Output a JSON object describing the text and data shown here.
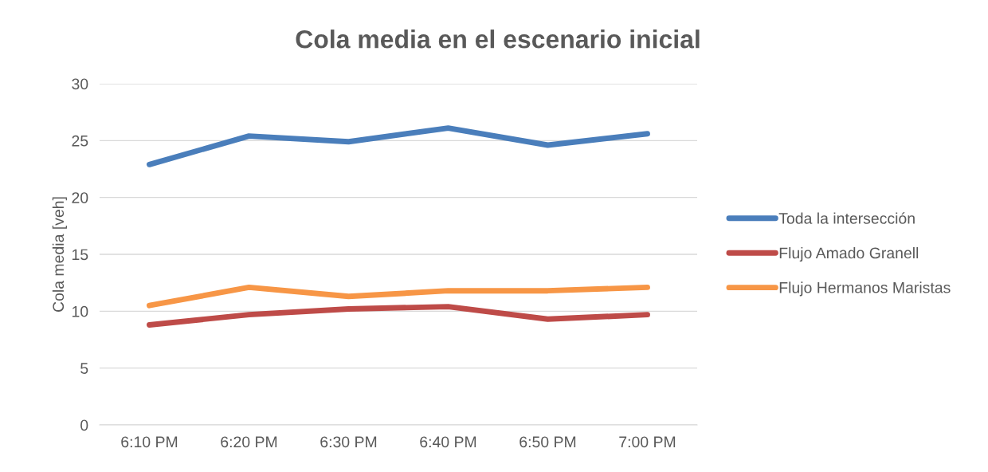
{
  "chart_data": {
    "type": "line",
    "title": "Cola media en el escenario inicial",
    "ylabel": "Cola media [veh]",
    "categories": [
      "6:10 PM",
      "6:20 PM",
      "6:30 PM",
      "6:40 PM",
      "6:50 PM",
      "7:00 PM"
    ],
    "series": [
      {
        "name": "Toda la intersección",
        "color": "#4a7ebb",
        "values": [
          22.9,
          25.4,
          24.9,
          26.1,
          24.6,
          25.6
        ]
      },
      {
        "name": "Flujo Amado Granell",
        "color": "#be4b48",
        "values": [
          8.8,
          9.7,
          10.2,
          10.4,
          9.3,
          9.7
        ]
      },
      {
        "name": "Flujo Hermanos Maristas",
        "color": "#f79646",
        "values": [
          10.5,
          12.1,
          11.3,
          11.8,
          11.8,
          12.1
        ]
      }
    ],
    "ylim": [
      0,
      30
    ],
    "yticks": [
      0,
      5,
      10,
      15,
      20,
      25,
      30
    ],
    "grid": "y",
    "legend": "right",
    "marker": "none",
    "line_style": "solid"
  }
}
